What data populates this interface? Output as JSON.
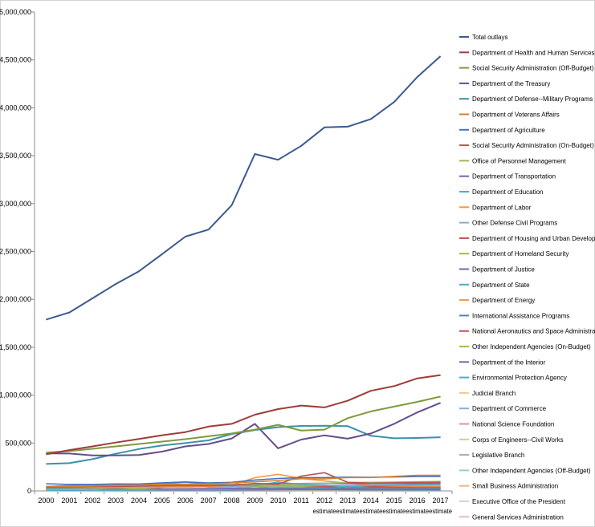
{
  "chart_data": {
    "type": "line",
    "title": "",
    "xlabel": "",
    "ylabel": "",
    "ylim": [
      0,
      5000000
    ],
    "yticks": [
      0,
      500000,
      1000000,
      1500000,
      2000000,
      2500000,
      3000000,
      3500000,
      4000000,
      4500000,
      5000000
    ],
    "ytick_labels": [
      "0",
      "500,000",
      "1,000,000",
      "1,500,000",
      "2,000,000",
      "2,500,000",
      "3,000,000",
      "3,500,000",
      "4,000,000",
      "4,500,000",
      "5,000,000"
    ],
    "categories": [
      "2000",
      "2001",
      "2002",
      "2003",
      "2004",
      "2005",
      "2006",
      "2007",
      "2008",
      "2009",
      "2010",
      "2011",
      "2012",
      "2013",
      "2014",
      "2015",
      "2016",
      "2017"
    ],
    "category_sublabels": [
      "",
      "",
      "",
      "",
      "",
      "",
      "",
      "",
      "",
      "",
      "",
      "",
      "estimate",
      "estimate",
      "estimate",
      "estimate",
      "estimate",
      "estimate"
    ],
    "gridlines": false,
    "legend_position": "right",
    "series": [
      {
        "name": "Total outlays",
        "color": "#3b5a8c",
        "values": [
          1789000,
          1863000,
          2011000,
          2160000,
          2293000,
          2472000,
          2655000,
          2729000,
          2983000,
          3518000,
          3457000,
          3603000,
          3796000,
          3803000,
          3883000,
          4060000,
          4322000,
          4539000
        ]
      },
      {
        "name": "Department of Health and Human Services",
        "color": "#9e3c3a",
        "values": [
          382000,
          426000,
          465000,
          505000,
          543000,
          581000,
          614000,
          672000,
          700000,
          796000,
          854000,
          891000,
          872000,
          941000,
          1045000,
          1094000,
          1175000,
          1209000
        ]
      },
      {
        "name": "Social Security Administration (Off-Budget)",
        "color": "#7f9a3c",
        "values": [
          400000,
          415000,
          440000,
          465000,
          490000,
          515000,
          540000,
          570000,
          600000,
          640000,
          690000,
          630000,
          640000,
          760000,
          830000,
          880000,
          930000,
          985000
        ]
      },
      {
        "name": "Department of the Treasury",
        "color": "#654d8c",
        "values": [
          391000,
          390000,
          370000,
          370000,
          375000,
          410000,
          465000,
          490000,
          548000,
          700000,
          445000,
          536000,
          580000,
          545000,
          600000,
          700000,
          820000,
          920000
        ]
      },
      {
        "name": "Department of Defense--Military Programs",
        "color": "#3a93a8",
        "values": [
          281000,
          290000,
          332000,
          388000,
          437000,
          474000,
          499000,
          528000,
          594000,
          636000,
          666000,
          678000,
          681000,
          677000,
          575000,
          549000,
          553000,
          560000
        ]
      },
      {
        "name": "Department of Veterans Affairs",
        "color": "#d7802e",
        "values": [
          47000,
          45000,
          51000,
          57000,
          60000,
          70000,
          70000,
          72000,
          84000,
          95000,
          108000,
          127000,
          125000,
          140000,
          140000,
          152000,
          163000,
          163000
        ]
      },
      {
        "name": "Department of Agriculture",
        "color": "#4472c4",
        "values": [
          75000,
          68000,
          68000,
          73000,
          72000,
          85000,
          94000,
          84000,
          90000,
          114000,
          130000,
          139000,
          139000,
          144000,
          142000,
          146000,
          150000,
          150000
        ]
      },
      {
        "name": "Social Security Administration (On-Budget)",
        "color": "#c0504d",
        "values": [
          40000,
          40000,
          46000,
          46000,
          50000,
          54000,
          55000,
          54000,
          58000,
          78000,
          70000,
          155000,
          190000,
          90000,
          80000,
          85000,
          88000,
          90000
        ]
      },
      {
        "name": "Office of Personnel Management",
        "color": "#9bbb59",
        "values": [
          48000,
          50000,
          53000,
          56000,
          59000,
          61000,
          62000,
          58000,
          64000,
          72000,
          69000,
          74000,
          80000,
          89000,
          90000,
          92000,
          96000,
          99000
        ]
      },
      {
        "name": "Department of Transportation",
        "color": "#8064a2",
        "values": [
          46000,
          55000,
          60000,
          54000,
          56000,
          57000,
          60000,
          61000,
          65000,
          73000,
          77000,
          77000,
          80000,
          76000,
          76000,
          77000,
          79000,
          80000
        ]
      },
      {
        "name": "Department of Education",
        "color": "#4bacc6",
        "values": [
          30000,
          35000,
          46000,
          57000,
          63000,
          72000,
          93000,
          66000,
          66000,
          53000,
          93000,
          65000,
          60000,
          40000,
          56000,
          60000,
          65000,
          70000
        ]
      },
      {
        "name": "Department of Labor",
        "color": "#f79646",
        "values": [
          31000,
          39000,
          64000,
          70000,
          56000,
          47000,
          43000,
          47000,
          59000,
          138000,
          173000,
          131000,
          104000,
          80000,
          58000,
          52000,
          50000,
          50000
        ]
      },
      {
        "name": "Other Defense Civil Programs",
        "color": "#92a9cf",
        "values": [
          32000,
          34000,
          35000,
          39000,
          41000,
          43000,
          44000,
          47000,
          45000,
          57000,
          54000,
          55000,
          56000,
          57000,
          58000,
          60000,
          61000,
          63000
        ]
      },
      {
        "name": "Department of Housing and Urban Development",
        "color": "#c0504d",
        "values": [
          30000,
          34000,
          32000,
          37000,
          45000,
          43000,
          42000,
          45000,
          49000,
          61000,
          60000,
          57000,
          48000,
          48000,
          45000,
          45000,
          46000,
          46000
        ]
      },
      {
        "name": "Department of Homeland Security",
        "color": "#9bbb59",
        "values": [
          13000,
          15000,
          18000,
          31000,
          26000,
          38000,
          69000,
          40000,
          41000,
          51000,
          45000,
          46000,
          47000,
          55000,
          46000,
          45000,
          45000,
          46000
        ]
      },
      {
        "name": "Department of Justice",
        "color": "#8064a2",
        "values": [
          20000,
          21000,
          22000,
          22000,
          29000,
          22000,
          23000,
          25000,
          27000,
          28000,
          30000,
          30000,
          34000,
          30000,
          33000,
          32000,
          33000,
          34000
        ]
      },
      {
        "name": "Department of State",
        "color": "#4bacc6",
        "values": [
          7000,
          8000,
          9000,
          9000,
          11000,
          12000,
          13000,
          14000,
          18000,
          22000,
          24000,
          27000,
          27000,
          30000,
          29000,
          29000,
          30000,
          30000
        ]
      },
      {
        "name": "Department of Energy",
        "color": "#f79646",
        "values": [
          15000,
          16000,
          17000,
          19000,
          20000,
          21000,
          20000,
          20000,
          21000,
          24000,
          31000,
          32000,
          35000,
          30000,
          28000,
          28000,
          29000,
          29000
        ]
      },
      {
        "name": "International Assistance Programs",
        "color": "#4f81bd",
        "values": [
          12000,
          12000,
          13000,
          14000,
          14000,
          15000,
          13000,
          13000,
          11000,
          15000,
          20000,
          20000,
          22000,
          23000,
          23000,
          24000,
          24000,
          25000
        ]
      },
      {
        "name": "National Aeronautics and Space Administration",
        "color": "#c0504d",
        "values": [
          13000,
          14000,
          15000,
          15000,
          15000,
          16000,
          15000,
          16000,
          17000,
          19000,
          19000,
          18000,
          18000,
          18000,
          18000,
          18000,
          18000,
          18000
        ]
      },
      {
        "name": "Other Independent Agencies (On-Budget)",
        "color": "#9bbb59",
        "values": [
          11000,
          13000,
          14000,
          15000,
          10000,
          14000,
          14000,
          13000,
          24000,
          45000,
          26000,
          30000,
          50000,
          20000,
          20000,
          22000,
          22000,
          22000
        ]
      },
      {
        "name": "Department of the Interior",
        "color": "#8064a2",
        "values": [
          8000,
          8000,
          10000,
          9000,
          9000,
          9000,
          9000,
          10000,
          10000,
          11000,
          13000,
          13000,
          13000,
          13000,
          12000,
          12000,
          13000,
          13000
        ]
      },
      {
        "name": "Environmental Protection Agency",
        "color": "#4bacc6",
        "values": [
          7000,
          7000,
          8000,
          8000,
          8000,
          8000,
          8000,
          8000,
          8000,
          8000,
          11000,
          11000,
          11000,
          10000,
          9000,
          9000,
          9000,
          9000
        ]
      },
      {
        "name": "Judicial Branch",
        "color": "#f9c78c",
        "values": [
          4000,
          4000,
          5000,
          5000,
          5000,
          6000,
          6000,
          6000,
          6000,
          7000,
          7000,
          7000,
          7000,
          7000,
          7000,
          7000,
          8000,
          8000
        ]
      },
      {
        "name": "Department of Commerce",
        "color": "#8ea9db",
        "values": [
          7000,
          5000,
          5000,
          6000,
          6000,
          6000,
          6000,
          6000,
          7000,
          11000,
          13000,
          9000,
          10000,
          9000,
          8000,
          9000,
          9000,
          10000
        ]
      },
      {
        "name": "National Science Foundation",
        "color": "#d99694",
        "values": [
          4000,
          4000,
          4000,
          5000,
          5000,
          6000,
          6000,
          6000,
          6000,
          6000,
          6000,
          7000,
          7000,
          7000,
          7000,
          7000,
          7000,
          7000
        ]
      },
      {
        "name": "Corps of Engineers--Civil Works",
        "color": "#c3d69b",
        "values": [
          4000,
          4000,
          4000,
          4000,
          5000,
          5000,
          7000,
          6000,
          6000,
          7000,
          10000,
          10000,
          9000,
          8000,
          7000,
          6000,
          6000,
          6000
        ]
      },
      {
        "name": "Legislative Branch",
        "color": "#b3a2c7",
        "values": [
          3000,
          3000,
          3000,
          4000,
          4000,
          4000,
          4000,
          4000,
          4000,
          4000,
          5000,
          5000,
          5000,
          5000,
          5000,
          5000,
          5000,
          5000
        ]
      },
      {
        "name": "Other Independent Agencies (Off-Budget)",
        "color": "#93cddd",
        "values": [
          2000,
          -2000,
          0,
          -5000,
          -4000,
          -2000,
          -1000,
          -4000,
          -5000,
          2000,
          -5000,
          3000,
          7000,
          2000,
          0,
          -2000,
          -1000,
          0
        ]
      },
      {
        "name": "Small Business Administration",
        "color": "#fab278",
        "values": [
          0,
          0,
          1000,
          2000,
          4000,
          2000,
          1000,
          1000,
          1000,
          3000,
          7000,
          6000,
          2000,
          1000,
          1000,
          1000,
          1000,
          1000
        ]
      },
      {
        "name": "Executive Office of the President",
        "color": "#c9d6ea",
        "values": [
          300,
          300,
          500,
          400,
          300,
          8000,
          5000,
          3000,
          1000,
          700,
          600,
          500,
          500,
          500,
          500,
          500,
          500,
          500
        ]
      },
      {
        "name": "General Services Administration",
        "color": "#e6b9b8",
        "values": [
          -300,
          0,
          -500,
          600,
          -400,
          0,
          0,
          0,
          0,
          300,
          1000,
          2000,
          0,
          0,
          0,
          0,
          0,
          0
        ]
      }
    ]
  }
}
